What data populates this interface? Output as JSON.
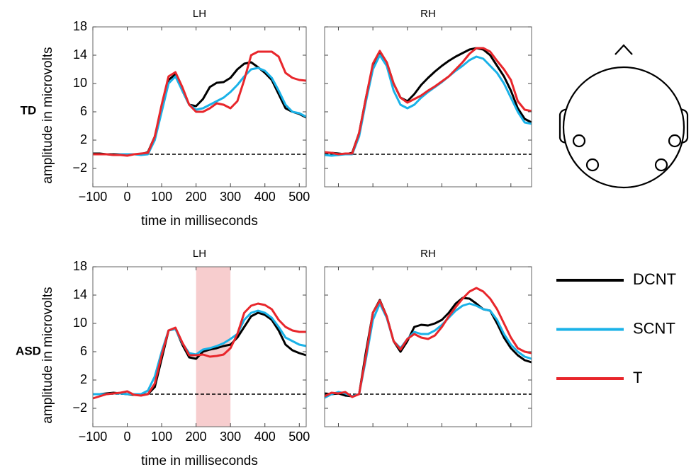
{
  "rows": [
    "TD",
    "ASD"
  ],
  "chart_data": [
    {
      "type": "line",
      "title": "LH",
      "xlabel": "time in milliseconds",
      "ylabel": "amplitude in microvolts",
      "xlim": [
        -100,
        520
      ],
      "ylim": [
        -4.6,
        18
      ],
      "xticks": [
        {
          "value": -100,
          "label": "−100"
        },
        0,
        100,
        200,
        300,
        400,
        500
      ],
      "yticks": [
        {
          "value": -2,
          "label": "−2"
        },
        2,
        6,
        10,
        14,
        18
      ],
      "hline": 0,
      "x": [
        -100,
        -80,
        -60,
        -40,
        -20,
        0,
        20,
        40,
        60,
        80,
        100,
        120,
        140,
        160,
        180,
        200,
        220,
        240,
        260,
        280,
        300,
        320,
        340,
        360,
        380,
        400,
        420,
        440,
        460,
        480,
        500,
        520
      ],
      "series": [
        {
          "name": "DCNT",
          "color": "#000000",
          "values": [
            0.1,
            0.1,
            0,
            0,
            0,
            0,
            0,
            0,
            0.3,
            2.5,
            6.5,
            10.5,
            11.3,
            9,
            7,
            6.8,
            7.8,
            9.5,
            10.1,
            10.2,
            10.8,
            12,
            12.8,
            13,
            12.3,
            11.5,
            10.5,
            8.5,
            6.5,
            6,
            5.7,
            5.2
          ]
        },
        {
          "name": "SCNT",
          "color": "#1ab2e8",
          "values": [
            0,
            0,
            0,
            -0.1,
            0,
            0,
            0,
            -0.1,
            0,
            2,
            6,
            10,
            11,
            9,
            7,
            6.3,
            6.5,
            7,
            7.5,
            8,
            8.8,
            9.8,
            11,
            12,
            12.2,
            11.8,
            10.8,
            9,
            7,
            6,
            5.8,
            5.3
          ]
        },
        {
          "name": "T",
          "color": "#e8262b",
          "values": [
            0,
            0,
            0,
            -0.1,
            -0.1,
            -0.2,
            0,
            0.1,
            0.2,
            2.5,
            7,
            11,
            11.6,
            9.5,
            7,
            6,
            6,
            6.5,
            7.2,
            7,
            6.5,
            7.5,
            10.5,
            14,
            14.5,
            14.5,
            14.5,
            13.8,
            11.5,
            10.8,
            10.5,
            10.4
          ]
        }
      ]
    },
    {
      "type": "line",
      "title": "RH",
      "xlim": [
        -40,
        560
      ],
      "ylim": [
        -4.6,
        18
      ],
      "xticks": [
        0,
        100,
        200,
        300,
        400,
        500
      ],
      "yticks": [
        -2,
        2,
        6,
        10,
        14,
        18
      ],
      "hline": 0,
      "x": [
        -40,
        -20,
        0,
        20,
        40,
        60,
        80,
        100,
        120,
        140,
        160,
        180,
        200,
        220,
        240,
        260,
        280,
        300,
        320,
        340,
        360,
        380,
        400,
        420,
        440,
        460,
        480,
        500,
        520,
        540,
        560
      ],
      "series": [
        {
          "name": "DCNT",
          "color": "#000000",
          "values": [
            0.2,
            0.2,
            0.1,
            0,
            0.2,
            3,
            8,
            12.5,
            14.3,
            13,
            10,
            8,
            7.5,
            8.5,
            9.8,
            10.8,
            11.7,
            12.5,
            13.2,
            13.8,
            14.3,
            14.8,
            15,
            14.8,
            14,
            12.5,
            11,
            9,
            6.5,
            5,
            4.5
          ]
        },
        {
          "name": "SCNT",
          "color": "#1ab2e8",
          "values": [
            -0.1,
            -0.2,
            -0.1,
            0,
            0,
            2.5,
            7.5,
            12,
            14,
            12.5,
            9,
            7,
            6.5,
            7,
            8,
            8.8,
            9.5,
            10.2,
            11,
            11.8,
            12.5,
            13.3,
            13.8,
            13.5,
            12.5,
            11.5,
            10,
            8,
            6,
            4.5,
            4.3
          ]
        },
        {
          "name": "T",
          "color": "#e8262b",
          "values": [
            0.3,
            0.2,
            0,
            0.1,
            0.1,
            3,
            8,
            12.8,
            14.6,
            13,
            10,
            8,
            7.3,
            7.8,
            8.3,
            9,
            9.6,
            10.3,
            11,
            12,
            13,
            14.2,
            15,
            15,
            14.5,
            13.2,
            12,
            10.5,
            7.5,
            6.3,
            6.1
          ]
        }
      ]
    },
    {
      "type": "line",
      "title": "LH",
      "xlabel": "time in milliseconds",
      "ylabel": "amplitude in microvolts",
      "xlim": [
        -100,
        520
      ],
      "ylim": [
        -4.6,
        18
      ],
      "xticks": [
        {
          "value": -100,
          "label": "−100"
        },
        0,
        100,
        200,
        300,
        400,
        500
      ],
      "yticks": [
        {
          "value": -2,
          "label": "−2"
        },
        2,
        6,
        10,
        14,
        18
      ],
      "hline": 0,
      "highlight": [
        200,
        300
      ],
      "x": [
        -100,
        -80,
        -60,
        -40,
        -20,
        0,
        20,
        40,
        60,
        80,
        100,
        120,
        140,
        160,
        180,
        200,
        220,
        240,
        260,
        280,
        300,
        320,
        340,
        360,
        380,
        400,
        420,
        440,
        460,
        480,
        500,
        520
      ],
      "series": [
        {
          "name": "DCNT",
          "color": "#000000",
          "values": [
            0,
            0,
            0.1,
            0.2,
            0.1,
            0,
            -0.1,
            -0.1,
            0,
            1,
            5,
            9,
            9.3,
            7,
            5.2,
            5,
            6,
            6.3,
            6.5,
            6.8,
            7,
            8,
            9.5,
            11,
            11.5,
            11.2,
            10.5,
            9,
            7,
            6.2,
            5.8,
            5.5
          ]
        },
        {
          "name": "SCNT",
          "color": "#1ab2e8",
          "values": [
            0,
            0,
            0,
            0.1,
            0.1,
            0,
            0,
            0,
            0.5,
            2.5,
            6,
            9,
            9.2,
            7.2,
            5.8,
            5.6,
            6.3,
            6.5,
            6.8,
            7.2,
            7.8,
            8.5,
            10.5,
            11.5,
            11.8,
            11.5,
            10.8,
            9.5,
            8,
            7.5,
            7,
            6.8
          ]
        },
        {
          "name": "T",
          "color": "#e8262b",
          "values": [
            -0.6,
            -0.3,
            0,
            0.1,
            0.2,
            0.4,
            -0.1,
            -0.2,
            0,
            1.5,
            5.5,
            9,
            9.4,
            7.3,
            5.5,
            5.5,
            5.6,
            5.3,
            5.4,
            5.6,
            6.5,
            8.5,
            11.5,
            12.5,
            12.8,
            12.6,
            12,
            10.5,
            9.5,
            9,
            8.8,
            8.8
          ]
        }
      ]
    },
    {
      "type": "line",
      "title": "RH",
      "xlim": [
        -40,
        560
      ],
      "ylim": [
        -4.6,
        18
      ],
      "xticks": [
        0,
        100,
        200,
        300,
        400,
        500
      ],
      "yticks": [
        -2,
        2,
        6,
        10,
        14,
        18
      ],
      "hline": 0,
      "x": [
        -40,
        -20,
        0,
        20,
        40,
        60,
        80,
        100,
        120,
        140,
        160,
        180,
        200,
        220,
        240,
        260,
        280,
        300,
        320,
        340,
        360,
        380,
        400,
        420,
        440,
        460,
        480,
        500,
        520,
        540,
        560
      ],
      "series": [
        {
          "name": "DCNT",
          "color": "#000000",
          "values": [
            0.1,
            0,
            0.1,
            -0.2,
            -0.3,
            0,
            6,
            11.5,
            13.3,
            11,
            7.5,
            6,
            7.5,
            9.5,
            9.8,
            9.7,
            10,
            10.5,
            11.5,
            12.8,
            13.6,
            13.5,
            12.8,
            12,
            11.8,
            10,
            8,
            6.5,
            5.5,
            4.8,
            4.5
          ]
        },
        {
          "name": "SCNT",
          "color": "#1ab2e8",
          "values": [
            -0.5,
            0,
            0.3,
            0.1,
            -0.3,
            0,
            5,
            10.5,
            12.8,
            10.8,
            7.5,
            6.5,
            7.8,
            8.8,
            8.5,
            8.5,
            9,
            9.8,
            10.8,
            11.8,
            12.5,
            12.8,
            12.5,
            12,
            11.8,
            10.5,
            8.5,
            7,
            6,
            5.3,
            5
          ]
        },
        {
          "name": "T",
          "color": "#e8262b",
          "values": [
            -0.3,
            0.2,
            0.1,
            0.3,
            -0.4,
            0,
            5.5,
            11.5,
            13.2,
            11,
            7.5,
            6.3,
            7.8,
            8.5,
            8,
            7.8,
            8.3,
            9.5,
            11,
            12.3,
            13.5,
            14.5,
            15,
            14.5,
            13.5,
            12,
            10,
            8,
            6.5,
            6,
            5.8
          ]
        }
      ]
    }
  ]
}
